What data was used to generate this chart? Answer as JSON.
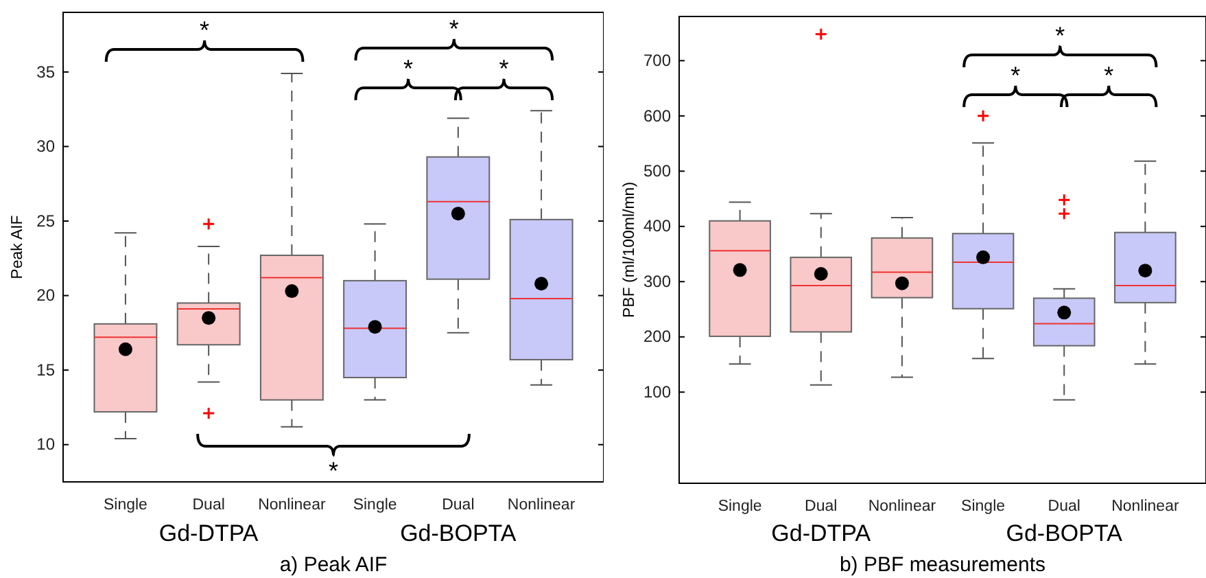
{
  "chart_data": [
    {
      "type": "box",
      "title": "a) Peak AIF",
      "ylabel": "Peak AIF",
      "categories": [
        "Single",
        "Dual",
        "Nonlinear",
        "Single",
        "Dual",
        "Nonlinear"
      ],
      "ylim": [
        7.5,
        39
      ],
      "yticks": [
        10,
        15,
        20,
        25,
        30,
        35
      ],
      "grid": false,
      "annotations": [
        "Gd-DTPA",
        "Gd-BOPTA",
        "*",
        "*",
        "*",
        "*",
        "*"
      ],
      "colors": [
        "#f9c8c8",
        "#f9c8c8",
        "#f9c8c8",
        "#c8c8f9",
        "#c8c8f9",
        "#c8c8f9"
      ],
      "boxes": [
        {
          "low": 10.4,
          "q1": 12.2,
          "median": 17.2,
          "q3": 18.1,
          "high": 24.2,
          "mean": 16.4
        },
        {
          "low": 14.2,
          "q1": 16.7,
          "median": 19.1,
          "q3": 19.5,
          "high": 23.3,
          "mean": 18.5,
          "outliers": [
            24.8,
            12.1
          ]
        },
        {
          "low": 11.2,
          "q1": 13.0,
          "median": 21.2,
          "q3": 22.7,
          "high": 34.9,
          "mean": 20.3
        },
        {
          "low": 13.0,
          "q1": 14.5,
          "median": 17.8,
          "q3": 21.0,
          "high": 24.8,
          "mean": 17.9
        },
        {
          "low": 17.5,
          "q1": 21.1,
          "median": 26.3,
          "q3": 29.3,
          "high": 31.9,
          "mean": 25.5
        },
        {
          "low": 14.0,
          "q1": 15.7,
          "median": 19.8,
          "q3": 25.1,
          "high": 32.4,
          "mean": 20.8
        }
      ]
    },
    {
      "type": "box",
      "title": "b) PBF measurements",
      "ylabel": "PBF (ml/100ml/mn)",
      "categories": [
        "Single",
        "Dual",
        "Nonlinear",
        "Single",
        "Dual",
        "Nonlinear"
      ],
      "ylim": [
        -65,
        780
      ],
      "yticks": [
        100,
        200,
        300,
        400,
        500,
        600,
        700
      ],
      "grid": false,
      "annotations": [
        "Gd-DTPA",
        "Gd-BOPTA",
        "*",
        "*",
        "*"
      ],
      "colors": [
        "#f9c8c8",
        "#f9c8c8",
        "#f9c8c8",
        "#c8c8f9",
        "#c8c8f9",
        "#c8c8f9"
      ],
      "boxes": [
        {
          "low": 151,
          "q1": 201,
          "median": 356,
          "q3": 410,
          "high": 444,
          "mean": 321
        },
        {
          "low": 113,
          "q1": 209,
          "median": 293,
          "q3": 344,
          "high": 423,
          "mean": 314,
          "outliers": [
            748
          ]
        },
        {
          "low": 127,
          "q1": 271,
          "median": 317,
          "q3": 379,
          "high": 416,
          "mean": 297
        },
        {
          "low": 161,
          "q1": 251,
          "median": 335,
          "q3": 387,
          "high": 551,
          "mean": 344,
          "outliers": [
            600
          ]
        },
        {
          "low": 86,
          "q1": 184,
          "median": 224,
          "q3": 270,
          "high": 287,
          "mean": 244,
          "outliers": [
            448,
            423
          ]
        },
        {
          "low": 151,
          "q1": 262,
          "median": 293,
          "q3": 389,
          "high": 518,
          "mean": 320
        }
      ]
    }
  ]
}
